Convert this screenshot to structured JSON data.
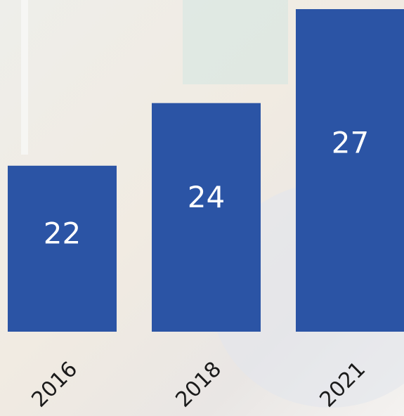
{
  "chart_data": {
    "type": "bar",
    "categories": [
      "2016",
      "2018",
      "2021"
    ],
    "values": [
      22,
      24,
      27
    ],
    "color": "#2b54a5",
    "ylim": [
      16.7,
      27
    ]
  }
}
